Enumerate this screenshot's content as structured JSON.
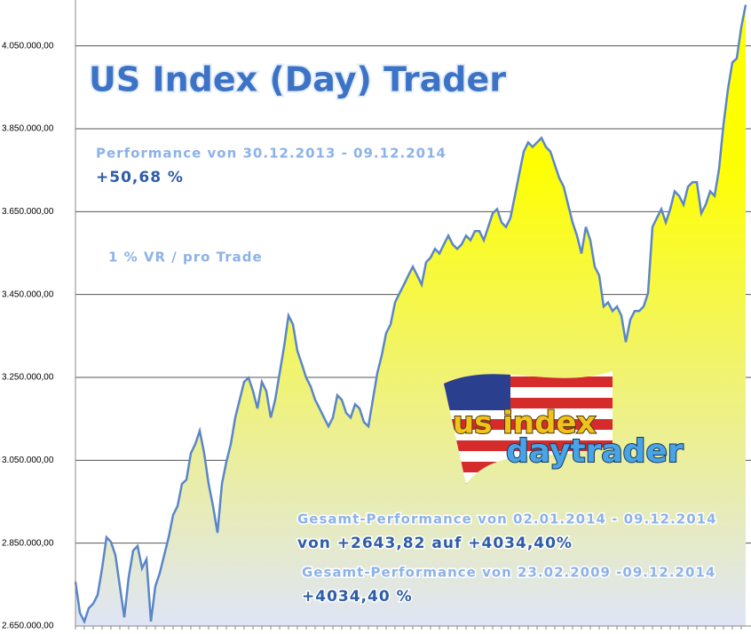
{
  "chart_data": {
    "type": "area",
    "title": "US Index (Day) Trader",
    "annotations": [
      "Performance  von  30.12.2013 - 09.12.2014",
      "+50,68  %",
      "1 % VR / pro Trade",
      "Gesamt-Performance  von  02.01.2014 - 09.12.2014",
      "von +2643,82 auf  +4034,40%",
      "Gesamt-Performance  von  23.02.2009 -09.12.2014",
      "+4034,40 %"
    ],
    "logo_text": [
      "us index",
      "daytrader"
    ],
    "values": [
      2757000,
      2682000,
      2661000,
      2693000,
      2704000,
      2725000,
      2789000,
      2864000,
      2853000,
      2821000,
      2746000,
      2671000,
      2768000,
      2832000,
      2843000,
      2789000,
      2811000,
      2661000,
      2746000,
      2778000,
      2821000,
      2864000,
      2918000,
      2939000,
      2993000,
      3003000,
      3067000,
      3089000,
      3121000,
      3067000,
      2993000,
      2939000,
      2875000,
      2993000,
      3046000,
      3089000,
      3153000,
      3196000,
      3239000,
      3249000,
      3217000,
      3175000,
      3239000,
      3217000,
      3153000,
      3196000,
      3260000,
      3324000,
      3399000,
      3378000,
      3314000,
      3282000,
      3249000,
      3228000,
      3196000,
      3175000,
      3153000,
      3132000,
      3153000,
      3207000,
      3196000,
      3164000,
      3153000,
      3185000,
      3175000,
      3142000,
      3132000,
      3196000,
      3260000,
      3303000,
      3357000,
      3378000,
      3431000,
      3453000,
      3474000,
      3496000,
      3517000,
      3496000,
      3474000,
      3528000,
      3539000,
      3560000,
      3549000,
      3571000,
      3592000,
      3571000,
      3560000,
      3571000,
      3592000,
      3581000,
      3603000,
      3603000,
      3581000,
      3613000,
      3646000,
      3656000,
      3624000,
      3613000,
      3635000,
      3688000,
      3742000,
      3795000,
      3817000,
      3806000,
      3817000,
      3828000,
      3806000,
      3795000,
      3763000,
      3731000,
      3710000,
      3667000,
      3624000,
      3592000,
      3549000,
      3613000,
      3581000,
      3517000,
      3496000,
      3421000,
      3431000,
      3410000,
      3421000,
      3399000,
      3335000,
      3389000,
      3410000,
      3410000,
      3421000,
      3453000,
      3613000,
      3635000,
      3656000,
      3624000,
      3656000,
      3699000,
      3688000,
      3667000,
      3710000,
      3721000,
      3721000,
      3646000,
      3667000,
      3699000,
      3688000,
      3753000,
      3860000,
      3945000,
      4010000,
      4020000,
      4095000,
      4149000
    ],
    "line_color": "#5a86c8",
    "fill_top": "#ffff00",
    "fill_bottom": "#dfe5f6",
    "ylim": [
      2650000,
      4150000
    ],
    "yticks": [
      {
        "value": 2650000,
        "label": "2.650.000,00"
      },
      {
        "value": 2850000,
        "label": "2.850.000,00"
      },
      {
        "value": 3050000,
        "label": "3.050.000,00"
      },
      {
        "value": 3250000,
        "label": "3.250.000,00"
      },
      {
        "value": 3450000,
        "label": "3.450.000,00"
      },
      {
        "value": 3650000,
        "label": "3.650.000,00"
      },
      {
        "value": 3850000,
        "label": "3.850.000,00"
      },
      {
        "value": 4050000,
        "label": "4.050.000,00"
      }
    ],
    "grid": true
  }
}
